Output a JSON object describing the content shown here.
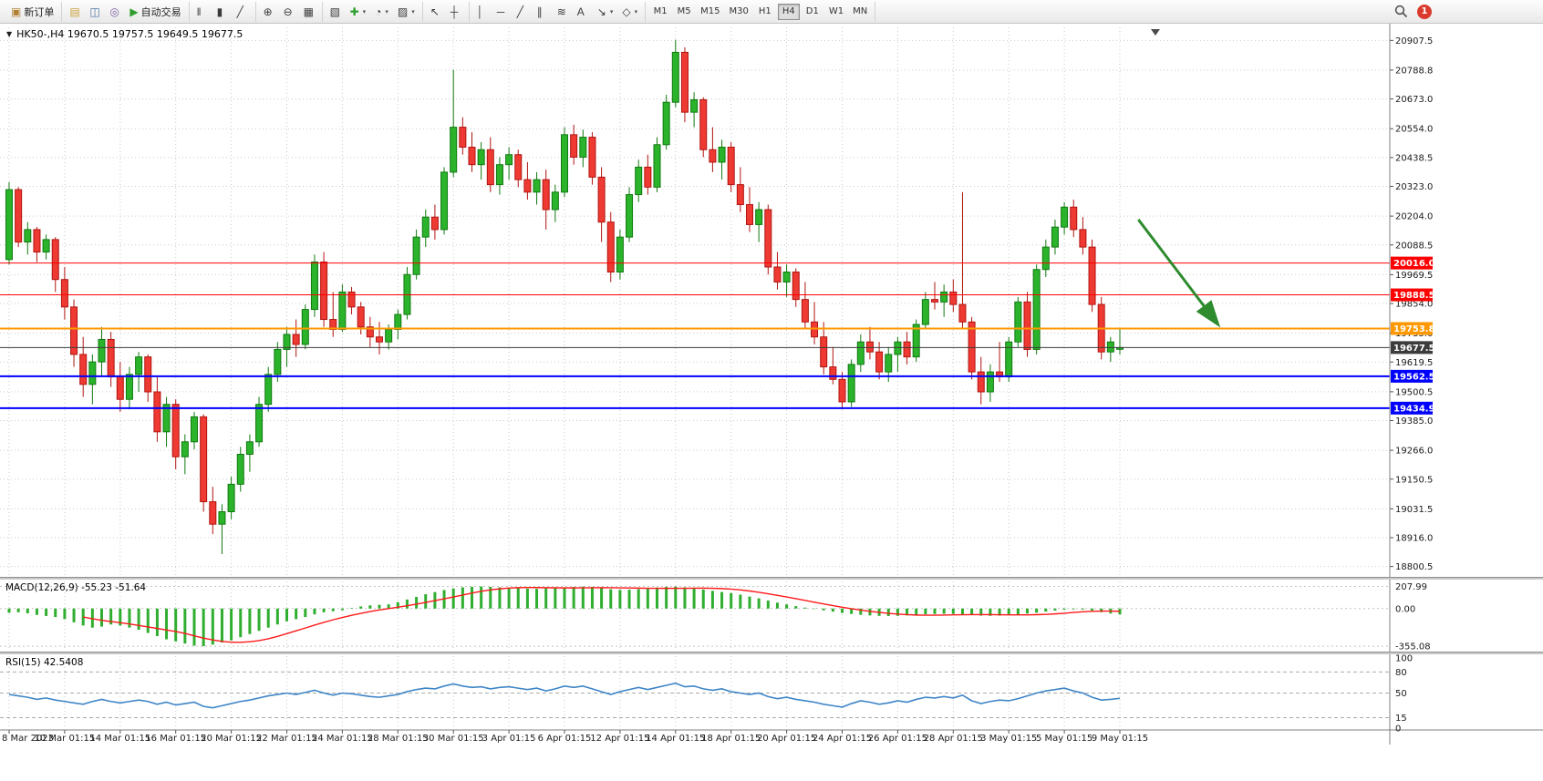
{
  "toolbar": {
    "groups": [
      {
        "items": [
          {
            "name": "new-order-button",
            "icon_name": "new-order-icon",
            "glyph": "▣",
            "glyph_color": "#b08030",
            "label": "新订单"
          }
        ]
      },
      {
        "items": [
          {
            "name": "charts-icon",
            "glyph": "▤",
            "glyph_color": "#caa23c"
          },
          {
            "name": "market-watch-icon",
            "glyph": "◫",
            "glyph_color": "#4a6fa5"
          },
          {
            "name": "navigator-icon",
            "glyph": "◎",
            "glyph_color": "#7a5c9e"
          },
          {
            "name": "auto-trading-button",
            "icon_name": "auto-trading-icon",
            "glyph": "▶",
            "glyph_color": "#2e9e2e",
            "label": "自动交易"
          }
        ]
      },
      {
        "items": [
          {
            "name": "bar-chart-icon",
            "glyph": "‖"
          },
          {
            "name": "candlestick-chart-icon",
            "glyph": "▮"
          },
          {
            "name": "line-chart-icon",
            "glyph": "╱"
          }
        ]
      },
      {
        "items": [
          {
            "name": "zoom-in-icon",
            "glyph": "⊕"
          },
          {
            "name": "zoom-out-icon",
            "glyph": "⊖"
          },
          {
            "name": "tile-windows-icon",
            "glyph": "▦"
          }
        ]
      },
      {
        "items": [
          {
            "name": "arrange-windows-icon",
            "glyph": "▧"
          },
          {
            "name": "add-indicator-icon",
            "glyph": "✚",
            "glyph_color": "#2e9e2e",
            "dropdown": true
          },
          {
            "name": "period-icon",
            "glyph": "◔",
            "dropdown": true
          },
          {
            "name": "templates-icon",
            "glyph": "▨",
            "dropdown": true
          }
        ]
      },
      {
        "items": [
          {
            "name": "cursor-icon",
            "glyph": "↖"
          },
          {
            "name": "crosshair-icon",
            "glyph": "┼"
          }
        ]
      },
      {
        "items": [
          {
            "name": "vertical-line-icon",
            "glyph": "│"
          },
          {
            "name": "horizontal-line-icon",
            "glyph": "─"
          },
          {
            "name": "trendline-icon",
            "glyph": "╱"
          },
          {
            "name": "channel-icon",
            "glyph": "∥"
          },
          {
            "name": "fibonacci-icon",
            "glyph": "≋"
          },
          {
            "name": "text-icon",
            "glyph": "A"
          },
          {
            "name": "arrow-tools-icon",
            "glyph": "↘",
            "dropdown": true
          },
          {
            "name": "shapes-icon",
            "glyph": "◇",
            "dropdown": true
          }
        ]
      }
    ],
    "timeframes": [
      "M1",
      "M5",
      "M15",
      "M30",
      "H1",
      "H4",
      "D1",
      "W1",
      "MN"
    ],
    "active_timeframe": "H4",
    "notification_count": "1"
  },
  "header": {
    "collapse_glyph": "▼",
    "symbol_info": "HK50-,H4  19670.5 19757.5 19649.5 19677.5",
    "shift_marker_glyph": "▼"
  },
  "indicators": {
    "macd_label": "MACD(12,26,9) -55.23 -51.64",
    "rsi_label": "RSI(15) 42.5408"
  },
  "chart_data": {
    "type": "candlestick",
    "symbol": "HK50-",
    "timeframe": "H4",
    "ohlc_readout": {
      "open": 19670.5,
      "high": 19757.5,
      "low": 19649.5,
      "close": 19677.5
    },
    "price_range": [
      18770,
      20960
    ],
    "price_ticks": [
      20907.5,
      20788.8,
      20673.0,
      20554.0,
      20438.5,
      20323.0,
      20204.0,
      20088.5,
      19969.5,
      19854.0,
      19735.0,
      19619.5,
      19500.5,
      19385.0,
      19266.0,
      19150.5,
      19031.5,
      18916.0,
      18800.5
    ],
    "x_tick_step": 6,
    "x_labels": [
      "8 Mar 2023",
      "10 Mar 01:15",
      "14 Mar 01:15",
      "16 Mar 01:15",
      "20 Mar 01:15",
      "22 Mar 01:15",
      "24 Mar 01:15",
      "28 Mar 01:15",
      "30 Mar 01:15",
      "3 Apr 01:15",
      "6 Apr 01:15",
      "12 Apr 01:15",
      "14 Apr 01:15",
      "18 Apr 01:15",
      "20 Apr 01:15",
      "24 Apr 01:15",
      "26 Apr 01:15",
      "28 Apr 01:15",
      "3 May 01:15",
      "5 May 01:15",
      "9 May 01:15"
    ],
    "levels": [
      {
        "price": 20016.0,
        "label": "20016.0",
        "color": "#fe0000",
        "width": 1,
        "kind": "resistance"
      },
      {
        "price": 19888.5,
        "label": "19888.5",
        "color": "#fe0000",
        "width": 1,
        "kind": "resistance"
      },
      {
        "price": 19753.8,
        "label": "19753.8",
        "color": "#ff9800",
        "width": 2,
        "kind": "pivot"
      },
      {
        "price": 19677.5,
        "label": "19677.5",
        "color": "#3c3c3c",
        "width": 1,
        "kind": "current-price"
      },
      {
        "price": 19562.5,
        "label": "19562.5",
        "color": "#0000fe",
        "width": 2,
        "kind": "support"
      },
      {
        "price": 19434.9,
        "label": "19434.9",
        "color": "#0000fe",
        "width": 2,
        "kind": "support"
      }
    ],
    "colors": {
      "up": "#2bb32b",
      "up_border": "#117a11",
      "down": "#ee3a32",
      "down_border": "#b01510",
      "grid": "#c9c9c9",
      "macd_hist": "#2fae2f",
      "macd_signal": "#ff1a1a",
      "rsi_line": "#3f86c8",
      "arrow": "#2e8b2e"
    },
    "candles": [
      [
        20030,
        20340,
        20010,
        20310
      ],
      [
        20310,
        20320,
        20080,
        20100
      ],
      [
        20100,
        20180,
        20050,
        20150
      ],
      [
        20150,
        20160,
        20020,
        20060
      ],
      [
        20060,
        20130,
        20030,
        20110
      ],
      [
        20110,
        20120,
        19900,
        19950
      ],
      [
        19950,
        20000,
        19790,
        19840
      ],
      [
        19840,
        19870,
        19600,
        19650
      ],
      [
        19650,
        19720,
        19480,
        19530
      ],
      [
        19530,
        19650,
        19450,
        19620
      ],
      [
        19620,
        19760,
        19560,
        19710
      ],
      [
        19710,
        19740,
        19520,
        19560
      ],
      [
        19560,
        19620,
        19420,
        19470
      ],
      [
        19470,
        19600,
        19430,
        19570
      ],
      [
        19570,
        19660,
        19500,
        19640
      ],
      [
        19640,
        19650,
        19460,
        19500
      ],
      [
        19500,
        19560,
        19300,
        19340
      ],
      [
        19340,
        19480,
        19280,
        19450
      ],
      [
        19450,
        19470,
        19190,
        19240
      ],
      [
        19240,
        19330,
        19170,
        19300
      ],
      [
        19300,
        19420,
        19270,
        19400
      ],
      [
        19400,
        19410,
        19020,
        19060
      ],
      [
        19060,
        19120,
        18930,
        18970
      ],
      [
        18970,
        19050,
        18850,
        19020
      ],
      [
        19020,
        19160,
        18990,
        19130
      ],
      [
        19130,
        19280,
        19100,
        19250
      ],
      [
        19250,
        19330,
        19180,
        19300
      ],
      [
        19300,
        19480,
        19280,
        19450
      ],
      [
        19450,
        19600,
        19420,
        19570
      ],
      [
        19570,
        19700,
        19540,
        19670
      ],
      [
        19670,
        19760,
        19600,
        19730
      ],
      [
        19730,
        19790,
        19640,
        19690
      ],
      [
        19690,
        19850,
        19670,
        19830
      ],
      [
        19830,
        20050,
        19800,
        20020
      ],
      [
        20020,
        20060,
        19760,
        19790
      ],
      [
        19790,
        19900,
        19720,
        19750
      ],
      [
        19750,
        19930,
        19740,
        19900
      ],
      [
        19900,
        19920,
        19810,
        19840
      ],
      [
        19840,
        19860,
        19730,
        19760
      ],
      [
        19760,
        19800,
        19680,
        19720
      ],
      [
        19720,
        19780,
        19650,
        19700
      ],
      [
        19700,
        19770,
        19670,
        19750
      ],
      [
        19750,
        19830,
        19710,
        19810
      ],
      [
        19810,
        20000,
        19790,
        19970
      ],
      [
        19970,
        20150,
        19950,
        20120
      ],
      [
        20120,
        20230,
        20080,
        20200
      ],
      [
        20200,
        20250,
        20110,
        20150
      ],
      [
        20150,
        20400,
        20130,
        20380
      ],
      [
        20380,
        20790,
        20360,
        20560
      ],
      [
        20560,
        20600,
        20450,
        20480
      ],
      [
        20480,
        20540,
        20380,
        20410
      ],
      [
        20410,
        20500,
        20350,
        20470
      ],
      [
        20470,
        20520,
        20300,
        20330
      ],
      [
        20330,
        20440,
        20290,
        20410
      ],
      [
        20410,
        20480,
        20350,
        20450
      ],
      [
        20450,
        20470,
        20320,
        20350
      ],
      [
        20350,
        20420,
        20270,
        20300
      ],
      [
        20300,
        20380,
        20250,
        20350
      ],
      [
        20350,
        20390,
        20150,
        20230
      ],
      [
        20230,
        20330,
        20180,
        20300
      ],
      [
        20300,
        20560,
        20280,
        20530
      ],
      [
        20530,
        20570,
        20410,
        20440
      ],
      [
        20440,
        20550,
        20400,
        20520
      ],
      [
        20520,
        20540,
        20330,
        20360
      ],
      [
        20360,
        20400,
        20100,
        20180
      ],
      [
        20180,
        20220,
        19940,
        19980
      ],
      [
        19980,
        20150,
        19950,
        20120
      ],
      [
        20120,
        20320,
        20100,
        20290
      ],
      [
        20290,
        20430,
        20260,
        20400
      ],
      [
        20400,
        20450,
        20290,
        20320
      ],
      [
        20320,
        20520,
        20300,
        20490
      ],
      [
        20490,
        20690,
        20470,
        20660
      ],
      [
        20660,
        20910,
        20640,
        20860
      ],
      [
        20860,
        20880,
        20580,
        20620
      ],
      [
        20620,
        20700,
        20560,
        20670
      ],
      [
        20670,
        20680,
        20440,
        20470
      ],
      [
        20470,
        20560,
        20380,
        20420
      ],
      [
        20420,
        20510,
        20350,
        20480
      ],
      [
        20480,
        20500,
        20300,
        20330
      ],
      [
        20330,
        20400,
        20220,
        20250
      ],
      [
        20250,
        20320,
        20140,
        20170
      ],
      [
        20170,
        20260,
        20100,
        20230
      ],
      [
        20230,
        20250,
        19970,
        20000
      ],
      [
        20000,
        20060,
        19910,
        19940
      ],
      [
        19940,
        20010,
        19880,
        19980
      ],
      [
        19980,
        19995,
        19840,
        19870
      ],
      [
        19870,
        19940,
        19750,
        19780
      ],
      [
        19780,
        19860,
        19690,
        19720
      ],
      [
        19720,
        19780,
        19570,
        19600
      ],
      [
        19600,
        19680,
        19530,
        19550
      ],
      [
        19550,
        19580,
        19430,
        19460
      ],
      [
        19460,
        19630,
        19440,
        19610
      ],
      [
        19610,
        19730,
        19580,
        19700
      ],
      [
        19700,
        19760,
        19630,
        19660
      ],
      [
        19660,
        19700,
        19550,
        19580
      ],
      [
        19580,
        19680,
        19540,
        19650
      ],
      [
        19650,
        19720,
        19580,
        19700
      ],
      [
        19700,
        19740,
        19610,
        19640
      ],
      [
        19640,
        19790,
        19620,
        19770
      ],
      [
        19770,
        19900,
        19750,
        19870
      ],
      [
        19870,
        19940,
        19830,
        19860
      ],
      [
        19860,
        19930,
        19800,
        19900
      ],
      [
        19900,
        19950,
        19820,
        19850
      ],
      [
        19850,
        20300,
        19750,
        19780
      ],
      [
        19780,
        19800,
        19550,
        19580
      ],
      [
        19580,
        19640,
        19450,
        19500
      ],
      [
        19500,
        19610,
        19460,
        19580
      ],
      [
        19580,
        19700,
        19540,
        19560
      ],
      [
        19560,
        19720,
        19540,
        19700
      ],
      [
        19700,
        19880,
        19680,
        19860
      ],
      [
        19860,
        19900,
        19640,
        19670
      ],
      [
        19670,
        20010,
        19650,
        19990
      ],
      [
        19990,
        20110,
        19960,
        20080
      ],
      [
        20080,
        20190,
        20050,
        20160
      ],
      [
        20160,
        20260,
        20130,
        20240
      ],
      [
        20240,
        20270,
        20120,
        20150
      ],
      [
        20150,
        20200,
        20050,
        20080
      ],
      [
        20080,
        20110,
        19820,
        19850
      ],
      [
        19850,
        19880,
        19630,
        19660
      ],
      [
        19660,
        19720,
        19620,
        19700
      ],
      [
        19670.5,
        19757.5,
        19649.5,
        19677.5
      ]
    ],
    "macd": {
      "title": "MACD(12,26,9)",
      "value": -55.23,
      "signal_value": -51.64,
      "signal_period": 9,
      "range": [
        -380,
        230
      ],
      "ticks": [
        {
          "v": 207.99,
          "label": "207.99"
        },
        {
          "v": 0,
          "label": "0.00"
        },
        {
          "v": -355.08,
          "label": "-355.08"
        }
      ],
      "histogram": [
        -40,
        -35,
        -45,
        -60,
        -70,
        -80,
        -100,
        -130,
        -160,
        -180,
        -170,
        -150,
        -160,
        -180,
        -200,
        -230,
        -260,
        -290,
        -310,
        -330,
        -350,
        -355,
        -340,
        -320,
        -300,
        -270,
        -240,
        -210,
        -180,
        -150,
        -120,
        -100,
        -80,
        -55,
        -35,
        -25,
        -15,
        5,
        20,
        30,
        35,
        40,
        60,
        85,
        110,
        135,
        155,
        175,
        190,
        200,
        205,
        208,
        205,
        200,
        196,
        192,
        188,
        186,
        190,
        195,
        200,
        204,
        207,
        205,
        196,
        182,
        176,
        178,
        183,
        190,
        198,
        205,
        207,
        200,
        191,
        179,
        167,
        156,
        146,
        131,
        113,
        96,
        76,
        56,
        39,
        23,
        9,
        -4,
        -17,
        -29,
        -41,
        -51,
        -59,
        -65,
        -69,
        -71,
        -69,
        -65,
        -59,
        -54,
        -51,
        -49,
        -51,
        -55,
        -61,
        -67,
        -69,
        -67,
        -61,
        -54,
        -47,
        -39,
        -29,
        -19,
        -11,
        -7,
        -9,
        -19,
        -34,
        -47,
        -55.23
      ]
    },
    "rsi": {
      "title": "RSI(15)",
      "value": 42.5408,
      "ticks": [
        100,
        80,
        50,
        15,
        0
      ],
      "levels": [
        80,
        50,
        15
      ],
      "values": [
        48,
        46,
        44,
        41,
        43,
        40,
        38,
        36,
        34,
        38,
        41,
        38,
        36,
        38,
        40,
        38,
        34,
        37,
        33,
        35,
        37,
        31,
        29,
        32,
        35,
        38,
        40,
        43,
        46,
        48,
        50,
        48,
        51,
        54,
        50,
        47,
        50,
        49,
        47,
        45,
        44,
        46,
        48,
        52,
        55,
        57,
        56,
        60,
        63,
        60,
        58,
        59,
        56,
        58,
        59,
        57,
        55,
        57,
        53,
        56,
        60,
        58,
        60,
        56,
        52,
        48,
        52,
        55,
        58,
        55,
        58,
        61,
        64,
        59,
        60,
        56,
        54,
        56,
        52,
        50,
        48,
        50,
        45,
        42,
        44,
        41,
        39,
        37,
        34,
        32,
        30,
        35,
        39,
        37,
        34,
        36,
        39,
        37,
        41,
        44,
        43,
        45,
        43,
        47,
        39,
        35,
        38,
        40,
        39,
        42,
        46,
        50,
        53,
        55,
        57,
        53,
        50,
        44,
        40,
        41,
        42.54
      ]
    },
    "annotations": [
      {
        "type": "arrow",
        "from_index": 122,
        "from_price": 20190,
        "to_index": 130.5,
        "to_price": 19775,
        "color": "#2e8b2e"
      }
    ]
  }
}
